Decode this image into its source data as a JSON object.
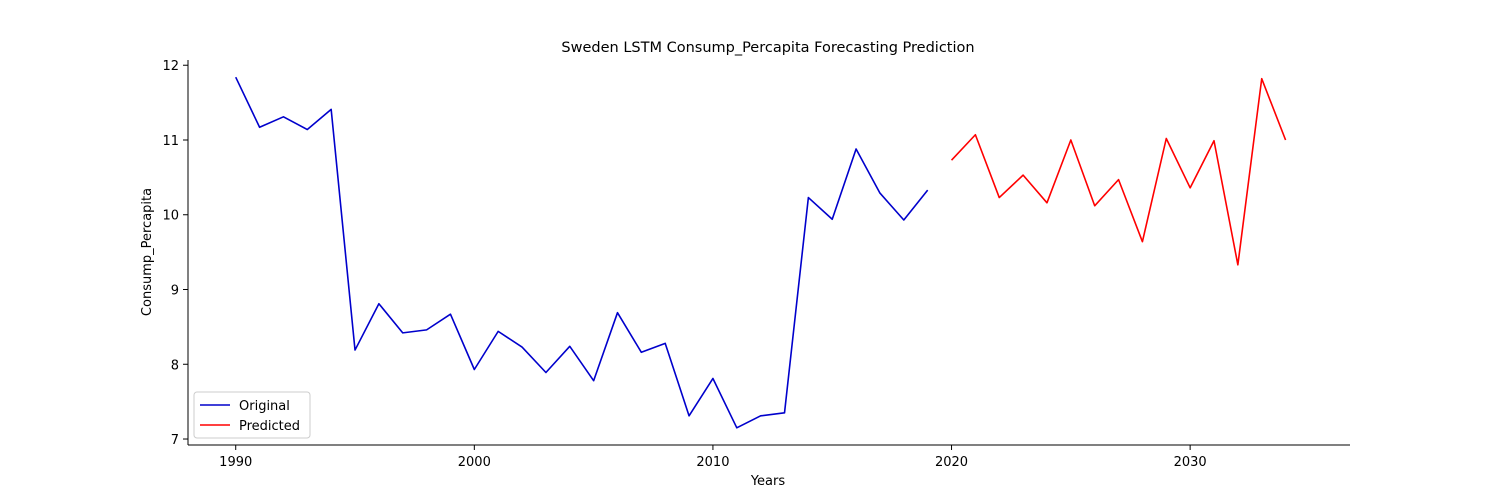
{
  "chart_data": {
    "type": "line",
    "title": "Sweden LSTM Consump_Percapita Forecasting Prediction",
    "xlabel": "Years",
    "ylabel": "Consump_Percapita",
    "xlim": [
      1988,
      2036.7
    ],
    "ylim": [
      6.92,
      12.07
    ],
    "xticks": [
      1990,
      2000,
      2010,
      2020,
      2030
    ],
    "yticks": [
      7,
      8,
      9,
      10,
      11,
      12
    ],
    "grid": false,
    "legend_position": "lower-left",
    "series": [
      {
        "name": "Original",
        "color": "#0000cc",
        "x": [
          1990,
          1991,
          1992,
          1993,
          1994,
          1995,
          1996,
          1997,
          1998,
          1999,
          2000,
          2001,
          2002,
          2003,
          2004,
          2005,
          2006,
          2007,
          2008,
          2009,
          2010,
          2011,
          2012,
          2013,
          2014,
          2015,
          2016,
          2017,
          2018,
          2019
        ],
        "values": [
          11.84,
          11.17,
          11.31,
          11.14,
          11.41,
          8.19,
          8.81,
          8.42,
          8.46,
          8.67,
          7.93,
          8.44,
          8.23,
          7.89,
          8.24,
          7.78,
          8.69,
          8.16,
          8.28,
          7.31,
          7.81,
          7.15,
          7.31,
          7.35,
          10.23,
          9.94,
          10.88,
          10.29,
          9.93,
          10.33
        ]
      },
      {
        "name": "Predicted",
        "color": "#ff0000",
        "x": [
          2020,
          2021,
          2022,
          2023,
          2024,
          2025,
          2026,
          2027,
          2028,
          2029,
          2030,
          2031,
          2032,
          2033,
          2034
        ],
        "values": [
          10.73,
          11.07,
          10.23,
          10.53,
          10.16,
          11.0,
          10.12,
          10.47,
          9.64,
          11.02,
          10.36,
          10.99,
          9.33,
          11.82,
          11.0
        ]
      }
    ]
  }
}
